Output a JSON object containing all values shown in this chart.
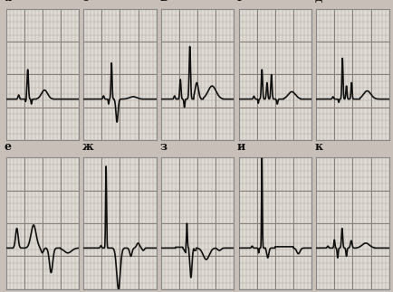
{
  "labels_top": [
    "а",
    "б",
    "в",
    "г",
    "д"
  ],
  "labels_bot": [
    "е",
    "ж",
    "з",
    "и",
    "к"
  ],
  "bg_color": "#c8c0b8",
  "panel_bg": "#dedad4",
  "grid_minor_color": "#b4aaa0",
  "grid_major_color": "#888078",
  "line_color": "#101010",
  "label_color": "#101010",
  "border_color": "#888888"
}
